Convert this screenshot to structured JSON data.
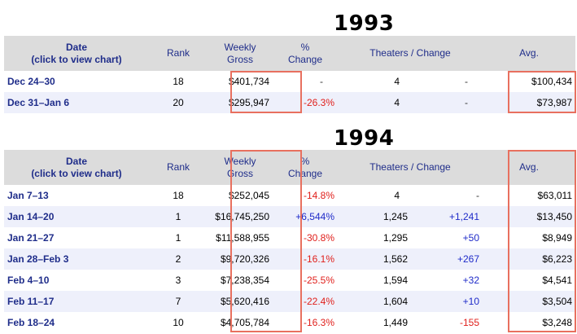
{
  "headers": {
    "date_line1": "Date",
    "date_line2": "(click to view chart)",
    "rank": "Rank",
    "weekly_line1": "Weekly",
    "weekly_line2": "Gross",
    "pct_line1": "%",
    "pct_line2": "Change",
    "theaters": "Theaters",
    "slash": " / ",
    "change": "Change",
    "avg": "Avg."
  },
  "sections": [
    {
      "year": "1993",
      "rows": [
        {
          "date": "Dec 24–30",
          "rank": "18",
          "gross": "$401,734",
          "pct": "-",
          "pct_type": "neutral",
          "theaters": "4",
          "change": "-",
          "change_type": "neutral",
          "avg": "$100,434"
        },
        {
          "date": "Dec 31–Jan 6",
          "rank": "20",
          "gross": "$295,947",
          "pct": "-26.3%",
          "pct_type": "neg",
          "theaters": "4",
          "change": "-",
          "change_type": "neutral",
          "avg": "$73,987"
        }
      ]
    },
    {
      "year": "1994",
      "rows": [
        {
          "date": "Jan 7–13",
          "rank": "18",
          "gross": "$252,045",
          "pct": "-14.8%",
          "pct_type": "neg",
          "theaters": "4",
          "change": "-",
          "change_type": "neutral",
          "avg": "$63,011"
        },
        {
          "date": "Jan 14–20",
          "rank": "1",
          "gross": "$16,745,250",
          "pct": "+6,544%",
          "pct_type": "pos",
          "theaters": "1,245",
          "change": "+1,241",
          "change_type": "pos",
          "avg": "$13,450"
        },
        {
          "date": "Jan 21–27",
          "rank": "1",
          "gross": "$11,588,955",
          "pct": "-30.8%",
          "pct_type": "neg",
          "theaters": "1,295",
          "change": "+50",
          "change_type": "pos",
          "avg": "$8,949"
        },
        {
          "date": "Jan 28–Feb 3",
          "rank": "2",
          "gross": "$9,720,326",
          "pct": "-16.1%",
          "pct_type": "neg",
          "theaters": "1,562",
          "change": "+267",
          "change_type": "pos",
          "avg": "$6,223"
        },
        {
          "date": "Feb 4–10",
          "rank": "3",
          "gross": "$7,238,354",
          "pct": "-25.5%",
          "pct_type": "neg",
          "theaters": "1,594",
          "change": "+32",
          "change_type": "pos",
          "avg": "$4,541"
        },
        {
          "date": "Feb 11–17",
          "rank": "7",
          "gross": "$5,620,416",
          "pct": "-22.4%",
          "pct_type": "neg",
          "theaters": "1,604",
          "change": "+10",
          "change_type": "pos",
          "avg": "$3,504"
        },
        {
          "date": "Feb 18–24",
          "rank": "10",
          "gross": "$4,705,784",
          "pct": "-16.3%",
          "pct_type": "neg",
          "theaters": "1,449",
          "change": "-155",
          "change_type": "neg",
          "avg": "$3,248"
        }
      ]
    }
  ],
  "colors": {
    "header_bg": "#dcdcdc",
    "header_text": "#1f2d8a",
    "row_alt_bg": "#eef0fb",
    "negative": "#e0201c",
    "positive": "#1f2bc9",
    "highlight_box": "#e8705f"
  }
}
